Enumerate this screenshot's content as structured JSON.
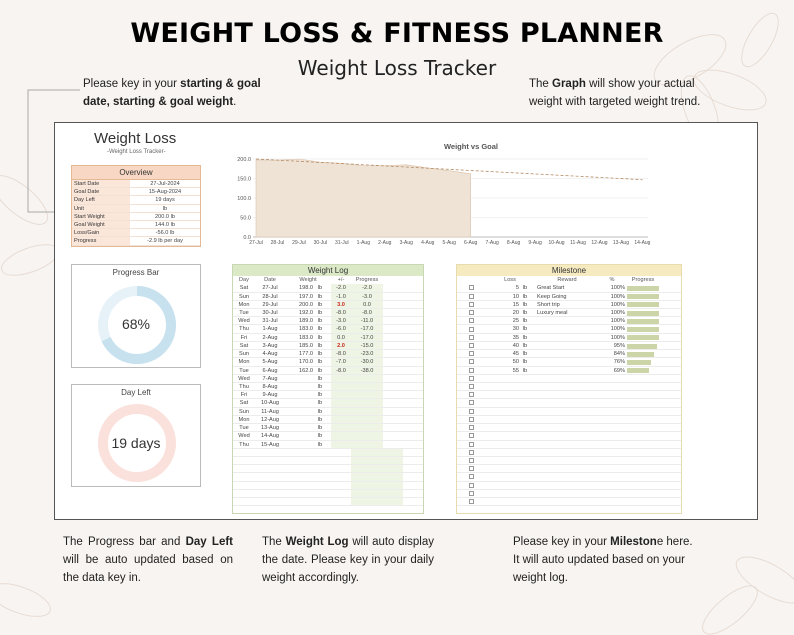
{
  "header": {
    "title": "WEIGHT LOSS  & FITNESS PLANNER",
    "subtitle": "Weight Loss Tracker"
  },
  "notes": {
    "top_left": {
      "t1": "Please key in your ",
      "b1": "starting & goal date, starting & goal weight",
      "t2": "."
    },
    "top_right": {
      "t1": "The ",
      "b1": "Graph",
      "t2": " will show your actual weight with targeted weight trend."
    },
    "bottom_left": {
      "t1": "The Progress bar and ",
      "b1": "Day Left",
      "t2": " will be auto updated based on the data key in."
    },
    "bottom_mid": {
      "t1": "The ",
      "b1": "Weight Log",
      "t2": " will auto display the date. Please key in your daily weight accordingly."
    },
    "bottom_right": {
      "t1": "Please key in your ",
      "b1": "Mileston",
      "t2": "e here. It will auto updated based on your weight log."
    }
  },
  "sheet": {
    "title": "Weight Loss",
    "subtitle": "-Weight Loss Tracker-",
    "overview": {
      "label": "Overview",
      "rows": [
        {
          "k": "Start Date",
          "v": "27-Jul-2024"
        },
        {
          "k": "Goal Date",
          "v": "15-Aug-2024"
        },
        {
          "k": "Day Left",
          "v": "19  days"
        },
        {
          "k": "Unit",
          "v": "lb"
        },
        {
          "k": "Start Weight",
          "v": "200.0  lb"
        },
        {
          "k": "Goal Weight",
          "v": "144.0  lb"
        },
        {
          "k": "Loss/Gain",
          "v": "-56.0  lb"
        },
        {
          "k": "Progress",
          "v": "-2.9  lb per day"
        }
      ]
    },
    "progress_card": {
      "title": "Progress Bar",
      "value_text": "68%",
      "fraction": 0.68
    },
    "dayleft_card": {
      "title": "Day Left",
      "value_text": "19 days",
      "fraction": 0.0
    },
    "colors": {
      "accent_peach": "#f8d8c4",
      "log_green": "#dbe9c6",
      "milestone_yellow": "#f6eac1",
      "ring_blue": "#c7e1ee",
      "ring_pink": "#fbe1dc"
    }
  },
  "chart_data": {
    "type": "area",
    "title": "Weight vs Goal",
    "x": [
      "27-Jul",
      "28-Jul",
      "29-Jul",
      "30-Jul",
      "31-Jul",
      "1-Aug",
      "2-Aug",
      "3-Aug",
      "4-Aug",
      "5-Aug",
      "6-Aug",
      "7-Aug",
      "8-Aug",
      "9-Aug",
      "10-Aug",
      "11-Aug",
      "12-Aug",
      "13-Aug",
      "14-Aug"
    ],
    "series": [
      {
        "values": [
          198,
          197,
          200,
          192,
          189,
          183,
          183,
          185,
          177,
          170,
          162,
          null,
          null,
          null,
          null,
          null,
          null,
          null,
          null
        ]
      },
      {
        "values": [
          200,
          197.1,
          194.1,
          191.2,
          188.2,
          185.3,
          182.3,
          179.4,
          176.4,
          173.5,
          170.5,
          167.6,
          164.6,
          161.7,
          158.7,
          155.8,
          152.8,
          149.9,
          146.9
        ]
      }
    ],
    "yticks": [
      "200.0",
      "150.0",
      "100.0",
      "50.0",
      "0.0"
    ],
    "ylim": [
      0,
      200
    ]
  },
  "weight_log": {
    "label": "Weight Log",
    "columns": [
      "Day",
      "Date",
      "Weight",
      "+/-",
      "Progress"
    ],
    "rows": [
      {
        "day": "Sat",
        "date": "27-Jul",
        "w": "198.0",
        "u": "lb",
        "d": "-2.0",
        "p": "-2.0",
        "hl": false
      },
      {
        "day": "Sun",
        "date": "28-Jul",
        "w": "197.0",
        "u": "lb",
        "d": "-1.0",
        "p": "-3.0",
        "hl": false
      },
      {
        "day": "Mon",
        "date": "29-Jul",
        "w": "200.0",
        "u": "lb",
        "d": "3.0",
        "p": "0.0",
        "hl": true
      },
      {
        "day": "Tue",
        "date": "30-Jul",
        "w": "192.0",
        "u": "lb",
        "d": "-8.0",
        "p": "-8.0",
        "hl": false
      },
      {
        "day": "Wed",
        "date": "31-Jul",
        "w": "189.0",
        "u": "lb",
        "d": "-3.0",
        "p": "-11.0",
        "hl": false
      },
      {
        "day": "Thu",
        "date": "1-Aug",
        "w": "183.0",
        "u": "lb",
        "d": "-6.0",
        "p": "-17.0",
        "hl": false
      },
      {
        "day": "Fri",
        "date": "2-Aug",
        "w": "183.0",
        "u": "lb",
        "d": "0.0",
        "p": "-17.0",
        "hl": false
      },
      {
        "day": "Sat",
        "date": "3-Aug",
        "w": "185.0",
        "u": "lb",
        "d": "2.0",
        "p": "-15.0",
        "hl": true
      },
      {
        "day": "Sun",
        "date": "4-Aug",
        "w": "177.0",
        "u": "lb",
        "d": "-8.0",
        "p": "-23.0",
        "hl": false
      },
      {
        "day": "Mon",
        "date": "5-Aug",
        "w": "170.0",
        "u": "lb",
        "d": "-7.0",
        "p": "-30.0",
        "hl": false
      },
      {
        "day": "Tue",
        "date": "6-Aug",
        "w": "162.0",
        "u": "lb",
        "d": "-8.0",
        "p": "-38.0",
        "hl": false
      },
      {
        "day": "Wed",
        "date": "7-Aug",
        "w": "",
        "u": "lb",
        "d": "",
        "p": "",
        "hl": false
      },
      {
        "day": "Thu",
        "date": "8-Aug",
        "w": "",
        "u": "lb",
        "d": "",
        "p": "",
        "hl": false
      },
      {
        "day": "Fri",
        "date": "9-Aug",
        "w": "",
        "u": "lb",
        "d": "",
        "p": "",
        "hl": false
      },
      {
        "day": "Sat",
        "date": "10-Aug",
        "w": "",
        "u": "lb",
        "d": "",
        "p": "",
        "hl": false
      },
      {
        "day": "Sun",
        "date": "11-Aug",
        "w": "",
        "u": "lb",
        "d": "",
        "p": "",
        "hl": false
      },
      {
        "day": "Mon",
        "date": "12-Aug",
        "w": "",
        "u": "lb",
        "d": "",
        "p": "",
        "hl": false
      },
      {
        "day": "Tue",
        "date": "13-Aug",
        "w": "",
        "u": "lb",
        "d": "",
        "p": "",
        "hl": false
      },
      {
        "day": "Wed",
        "date": "14-Aug",
        "w": "",
        "u": "lb",
        "d": "",
        "p": "",
        "hl": false
      },
      {
        "day": "Thu",
        "date": "15-Aug",
        "w": "",
        "u": "lb",
        "d": "",
        "p": "",
        "hl": false
      }
    ]
  },
  "milestone": {
    "label": "Milestone",
    "columns": [
      "Loss",
      "Reward",
      "%",
      "Progress"
    ],
    "rows": [
      {
        "loss": "5",
        "unit": "lb",
        "reward": "Great Start",
        "pct": "100%",
        "frac": 1.0
      },
      {
        "loss": "10",
        "unit": "lb",
        "reward": "Keep Going",
        "pct": "100%",
        "frac": 1.0
      },
      {
        "loss": "15",
        "unit": "lb",
        "reward": "Short trip",
        "pct": "100%",
        "frac": 1.0
      },
      {
        "loss": "20",
        "unit": "lb",
        "reward": "Luxury meal",
        "pct": "100%",
        "frac": 1.0
      },
      {
        "loss": "25",
        "unit": "lb",
        "reward": "",
        "pct": "100%",
        "frac": 1.0
      },
      {
        "loss": "30",
        "unit": "lb",
        "reward": "",
        "pct": "100%",
        "frac": 1.0
      },
      {
        "loss": "35",
        "unit": "lb",
        "reward": "",
        "pct": "100%",
        "frac": 1.0
      },
      {
        "loss": "40",
        "unit": "lb",
        "reward": "",
        "pct": "95%",
        "frac": 0.95
      },
      {
        "loss": "45",
        "unit": "lb",
        "reward": "",
        "pct": "84%",
        "frac": 0.84
      },
      {
        "loss": "50",
        "unit": "lb",
        "reward": "",
        "pct": "76%",
        "frac": 0.76
      },
      {
        "loss": "55",
        "unit": "lb",
        "reward": "",
        "pct": "69%",
        "frac": 0.69
      }
    ]
  }
}
